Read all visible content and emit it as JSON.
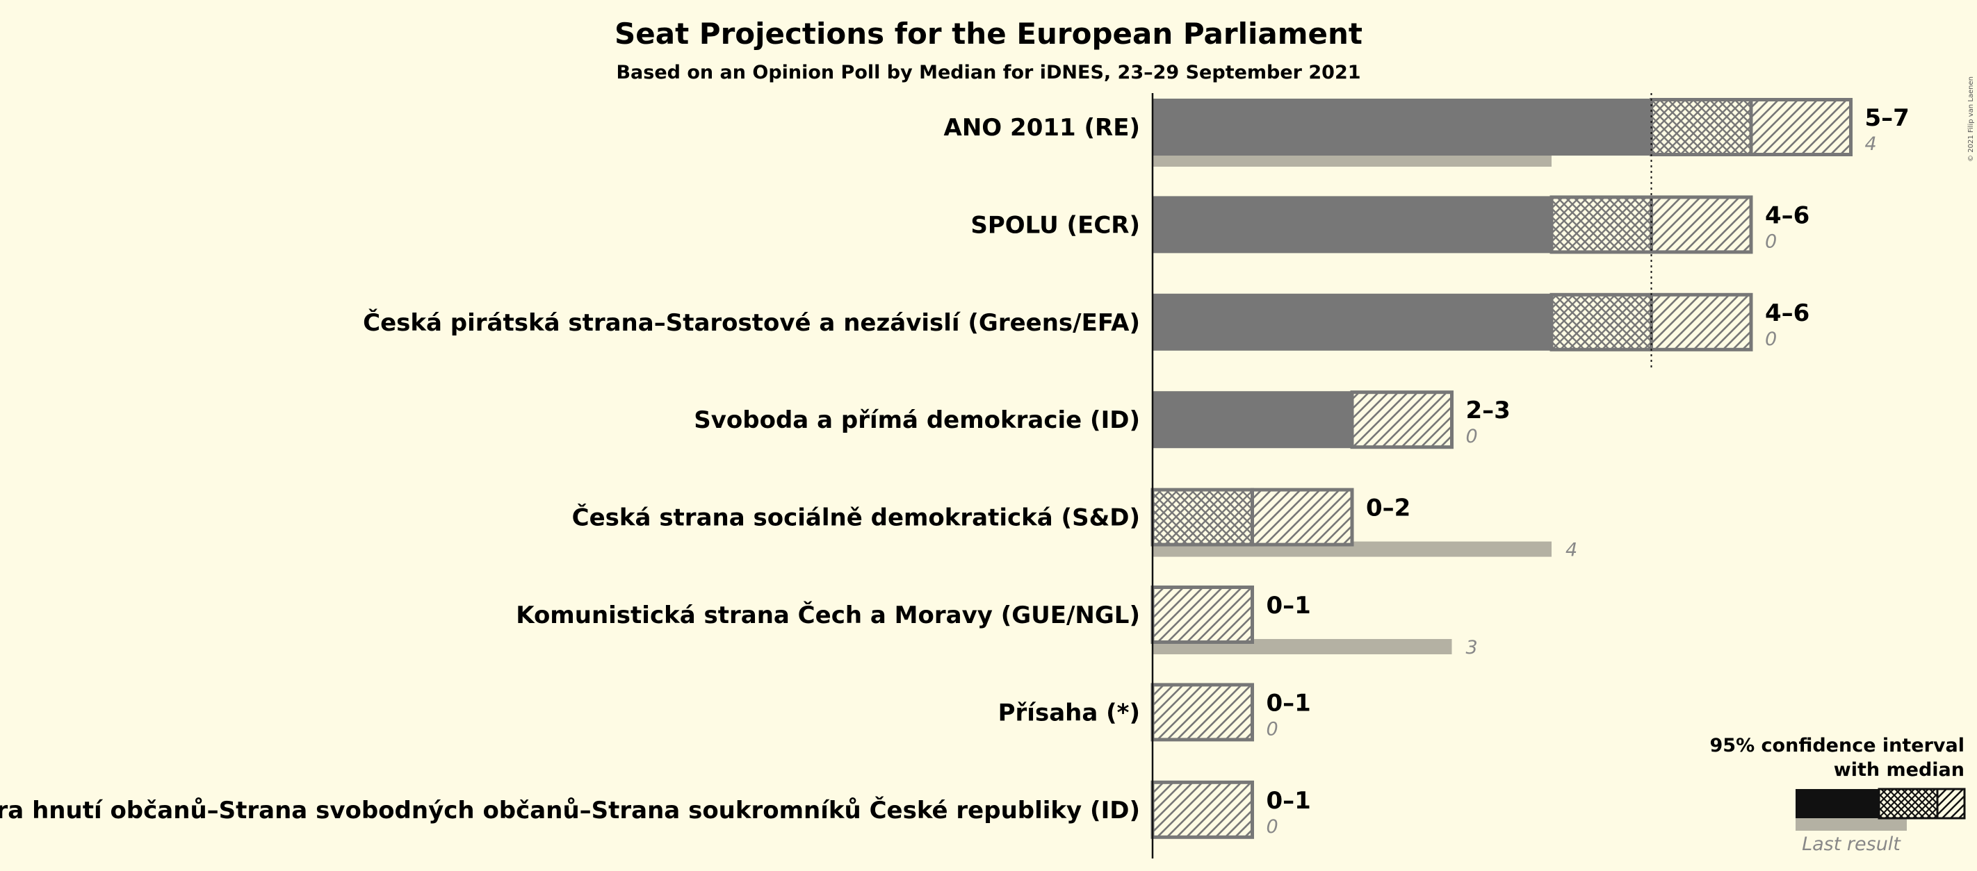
{
  "title": "Seat Projections for the European Parliament",
  "subtitle": "Based on an Opinion Poll by Median for iDNES, 23–29 September 2021",
  "copyright": "© 2021 Filip van Laenen",
  "colors": {
    "background": "#fefbe4",
    "bar": "#777777",
    "last_result": "#b4b1a3",
    "legend_bar": "#111111"
  },
  "legend": {
    "line1": "95% confidence interval",
    "line2": "with median",
    "last_result": "Last result"
  },
  "majority_line_value": 5,
  "chart_data": {
    "type": "bar",
    "orientation": "horizontal",
    "categories": [
      "ANO 2011 (RE)",
      "SPOLU (ECR)",
      "Česká pirátská strana–Starostové a nezávislí (Greens/EFA)",
      "Svoboda a přímá demokracie (ID)",
      "Česká strana sociálně demokratická (S&D)",
      "Komunistická strana Čech a Moravy (GUE/NGL)",
      "Přísaha (*)",
      "Trikolóra hnutí občanů–Strana svobodných občanů–Strana soukromníků České republiky (ID)"
    ],
    "ci_low": [
      5,
      4,
      4,
      2,
      0,
      0,
      0,
      0
    ],
    "median": [
      6,
      5,
      5,
      2,
      1,
      0,
      0,
      0
    ],
    "ci_high": [
      7,
      6,
      6,
      3,
      2,
      1,
      1,
      1
    ],
    "range_labels": [
      "5–7",
      "4–6",
      "4–6",
      "2–3",
      "0–2",
      "0–1",
      "0–1",
      "0–1"
    ],
    "last_result": [
      4,
      0,
      0,
      0,
      4,
      3,
      0,
      0
    ],
    "last_result_labels": [
      "4",
      "0",
      "0",
      "0",
      "4",
      "3",
      "0",
      "0"
    ],
    "xlim": [
      0,
      7
    ]
  }
}
